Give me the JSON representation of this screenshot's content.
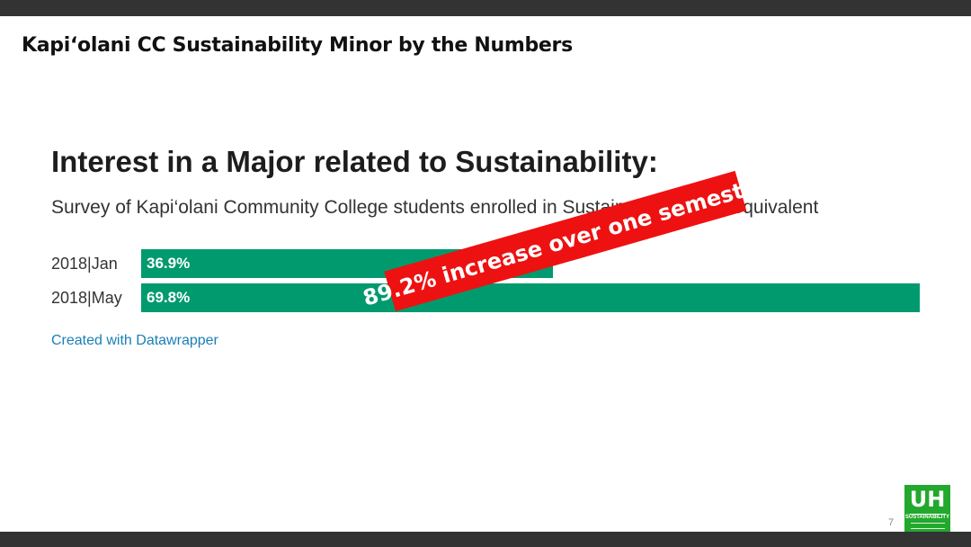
{
  "slide": {
    "title": "Kapi‘olani CC Sustainability Minor by the Numbers",
    "page_number": "7"
  },
  "chart_data": {
    "type": "bar",
    "orientation": "horizontal",
    "title": "Interest in a Major related to Sustainability:",
    "subtitle": "Survey of Kapi‘olani Community College students enrolled in Sustainability Minor-equivalent",
    "categories": [
      "2018|Jan",
      "2018|May"
    ],
    "values": [
      36.9,
      69.8
    ],
    "value_labels": [
      "36.9%",
      "69.8%"
    ],
    "xlim": [
      0,
      69.8
    ],
    "bar_color": "#009a6e",
    "credit": "Created with Datawrapper",
    "annotation": "89.2% increase over one semester",
    "annotation_color": "#ee1111"
  },
  "logo": {
    "text": "UH",
    "subtext": "SUSTAINABILITY"
  }
}
